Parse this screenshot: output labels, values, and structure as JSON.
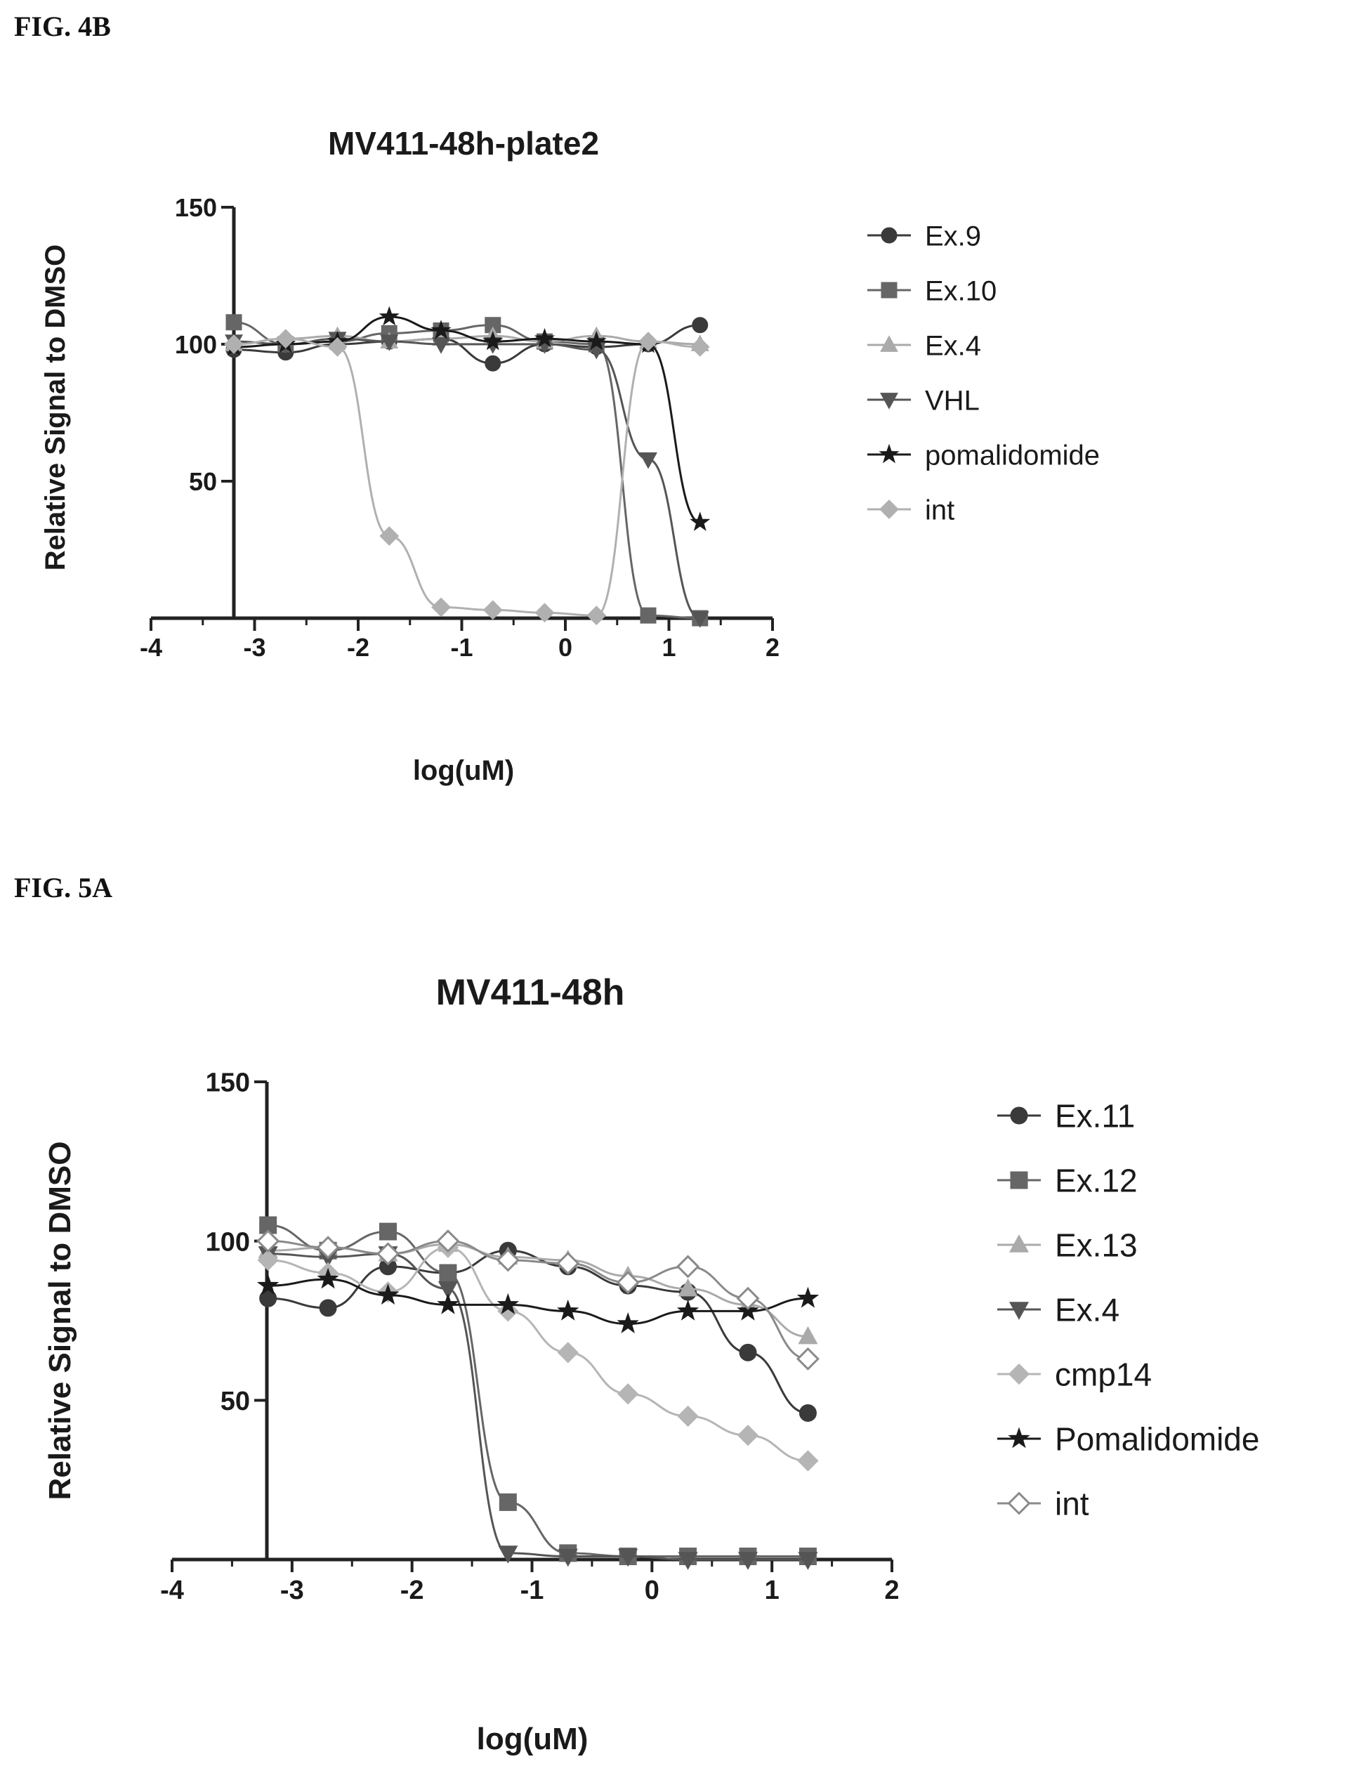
{
  "figures": [
    {
      "label": "FIG. 4B"
    },
    {
      "label": "FIG. 5A"
    }
  ],
  "chart_data": [
    {
      "type": "line",
      "title": "MV411-48h-plate2",
      "xlabel": "log(uM)",
      "ylabel": "Relative Signal to DMSO",
      "xlim": [
        -4,
        2
      ],
      "ylim": [
        0,
        150
      ],
      "x_ticks": [
        "-4",
        "-3",
        "-2",
        "-1",
        "0",
        "1",
        "2"
      ],
      "y_ticks": [
        "50",
        "100",
        "150"
      ],
      "legend_position": "right",
      "series": [
        {
          "name": "Ex.9",
          "marker": "circle",
          "color": "#3a3a3a",
          "x": [
            -3.2,
            -2.7,
            -2.2,
            -1.7,
            -1.2,
            -0.7,
            -0.2,
            0.3,
            0.8,
            1.3
          ],
          "y": [
            98,
            97,
            100,
            101,
            102,
            93,
            100,
            99,
            100,
            107
          ]
        },
        {
          "name": "Ex.10",
          "marker": "square",
          "color": "#666666",
          "x": [
            -3.2,
            -2.7,
            -2.2,
            -1.7,
            -1.2,
            -0.7,
            -0.2,
            0.3,
            0.8,
            1.3
          ],
          "y": [
            108,
            100,
            101,
            104,
            105,
            107,
            101,
            100,
            1,
            0
          ]
        },
        {
          "name": "Ex.4",
          "marker": "triangle-up",
          "color": "#aaaaaa",
          "x": [
            -3.2,
            -2.7,
            -2.2,
            -1.7,
            -1.2,
            -0.7,
            -0.2,
            0.3,
            0.8,
            1.3
          ],
          "y": [
            100,
            102,
            103,
            101,
            102,
            103,
            101,
            103,
            101,
            100
          ]
        },
        {
          "name": "VHL",
          "marker": "triangle-down",
          "color": "#555555",
          "x": [
            -3.2,
            -2.7,
            -2.2,
            -1.7,
            -1.2,
            -0.7,
            -0.2,
            0.3,
            0.8,
            1.3
          ],
          "y": [
            101,
            100,
            102,
            101,
            100,
            100,
            100,
            98,
            58,
            0
          ]
        },
        {
          "name": "pomalidomide",
          "marker": "star",
          "color": "#1a1a1a",
          "x": [
            -3.2,
            -2.7,
            -2.2,
            -1.7,
            -1.2,
            -0.7,
            -0.2,
            0.3,
            0.8,
            1.3
          ],
          "y": [
            99,
            100,
            101,
            110,
            105,
            101,
            102,
            101,
            100,
            35
          ]
        },
        {
          "name": "int",
          "marker": "diamond",
          "color": "#b0b0b0",
          "x": [
            -3.2,
            -2.7,
            -2.2,
            -1.7,
            -1.2,
            -0.7,
            -0.2,
            0.3,
            0.8,
            1.3
          ],
          "y": [
            100,
            102,
            99,
            30,
            4,
            3,
            2,
            1,
            101,
            99
          ]
        }
      ]
    },
    {
      "type": "line",
      "title": "MV411-48h",
      "xlabel": "log(uM)",
      "ylabel": "Relative Signal to DMSO",
      "xlim": [
        -4,
        2
      ],
      "ylim": [
        0,
        150
      ],
      "x_ticks": [
        "-4",
        "-3",
        "-2",
        "-1",
        "0",
        "1",
        "2"
      ],
      "y_ticks": [
        "50",
        "100",
        "150"
      ],
      "legend_position": "right",
      "series": [
        {
          "name": "Ex.11",
          "marker": "circle",
          "color": "#3a3a3a",
          "x": [
            -3.2,
            -2.7,
            -2.2,
            -1.7,
            -1.2,
            -0.7,
            -0.2,
            0.3,
            0.8,
            1.3
          ],
          "y": [
            82,
            79,
            92,
            90,
            97,
            92,
            86,
            84,
            65,
            46
          ]
        },
        {
          "name": "Ex.12",
          "marker": "square",
          "color": "#666666",
          "x": [
            -3.2,
            -2.7,
            -2.2,
            -1.7,
            -1.2,
            -0.7,
            -0.2,
            0.3,
            0.8,
            1.3
          ],
          "y": [
            105,
            97,
            103,
            90,
            18,
            2,
            1,
            1,
            1,
            1
          ]
        },
        {
          "name": "Ex.13",
          "marker": "triangle-up",
          "color": "#aaaaaa",
          "x": [
            -3.2,
            -2.7,
            -2.2,
            -1.7,
            -1.2,
            -0.7,
            -0.2,
            0.3,
            0.8,
            1.3
          ],
          "y": [
            97,
            98,
            96,
            99,
            95,
            94,
            89,
            85,
            80,
            70
          ]
        },
        {
          "name": "Ex.4",
          "marker": "triangle-down",
          "color": "#555555",
          "x": [
            -3.2,
            -2.7,
            -2.2,
            -1.7,
            -1.2,
            -0.7,
            -0.2,
            0.3,
            0.8,
            1.3
          ],
          "y": [
            96,
            95,
            96,
            85,
            2,
            1,
            1,
            0,
            0,
            0
          ]
        },
        {
          "name": "cmp14",
          "marker": "diamond",
          "color": "#b5b5b5",
          "x": [
            -3.2,
            -2.7,
            -2.2,
            -1.7,
            -1.2,
            -0.7,
            -0.2,
            0.3,
            0.8,
            1.3
          ],
          "y": [
            94,
            90,
            84,
            98,
            78,
            65,
            52,
            45,
            39,
            31
          ]
        },
        {
          "name": "Pomalidomide",
          "marker": "star",
          "color": "#1a1a1a",
          "x": [
            -3.2,
            -2.7,
            -2.2,
            -1.7,
            -1.2,
            -0.7,
            -0.2,
            0.3,
            0.8,
            1.3
          ],
          "y": [
            86,
            88,
            83,
            80,
            80,
            78,
            74,
            78,
            78,
            82
          ]
        },
        {
          "name": "int",
          "marker": "diamond-open",
          "color": "#8a8a8a",
          "x": [
            -3.2,
            -2.7,
            -2.2,
            -1.7,
            -1.2,
            -0.7,
            -0.2,
            0.3,
            0.8,
            1.3
          ],
          "y": [
            100,
            98,
            96,
            100,
            94,
            93,
            87,
            92,
            82,
            63
          ]
        }
      ]
    }
  ]
}
